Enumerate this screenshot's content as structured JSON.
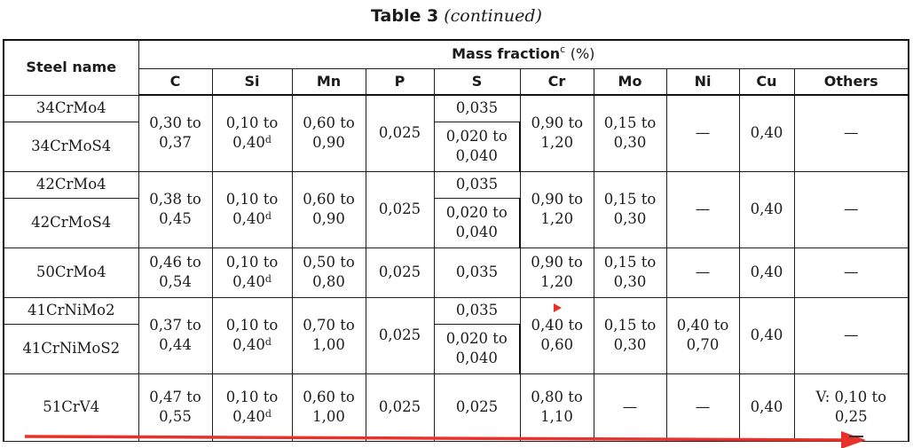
{
  "caption": {
    "main": "Table 3",
    "sub": "(continued)"
  },
  "header": {
    "steel_name": "Steel name",
    "mass_fraction": "Mass fraction",
    "mass_fraction_sup": "c",
    "mass_fraction_unit": "(%)",
    "elements": [
      "C",
      "Si",
      "Mn",
      "P",
      "S",
      "Cr",
      "Mo",
      "Ni",
      "Cu",
      "Others"
    ]
  },
  "groups": [
    {
      "names": [
        "34CrMo4",
        "34CrMoS4"
      ],
      "C": "0,30 to 0,37",
      "Si": "0,10 to 0,40",
      "Si_sup": "d",
      "Mn": "0,60 to 0,90",
      "P": "0,025",
      "S": [
        "0,035",
        "0,020 to 0,040"
      ],
      "Cr": "0,90 to 1,20",
      "Mo": "0,15 to 0,30",
      "Ni": "—",
      "Cu": "0,40",
      "Others": "—"
    },
    {
      "names": [
        "42CrMo4",
        "42CrMoS4"
      ],
      "C": "0,38 to 0,45",
      "Si": "0,10 to 0,40",
      "Si_sup": "d",
      "Mn": "0,60 to 0,90",
      "P": "0,025",
      "S": [
        "0,035",
        "0,020 to 0,040"
      ],
      "Cr": "0,90 to 1,20",
      "Mo": "0,15 to 0,30",
      "Ni": "—",
      "Cu": "0,40",
      "Others": "—"
    },
    {
      "names": [
        "50CrMo4"
      ],
      "C": "0,46 to 0,54",
      "Si": "0,10 to 0,40",
      "Si_sup": "d",
      "Mn": "0,50 to 0,80",
      "P": "0,025",
      "S": [
        "0,035"
      ],
      "Cr": "0,90 to 1,20",
      "Mo": "0,15 to 0,30",
      "Ni": "—",
      "Cu": "0,40",
      "Others": "—"
    },
    {
      "names": [
        "41CrNiMo2",
        "41CrNiMoS2"
      ],
      "C": "0,37 to 0,44",
      "Si": "0,10 to 0,40",
      "Si_sup": "d",
      "Mn": "0,70 to 1,00",
      "P": "0,025",
      "S": [
        "0,035",
        "0,020 to 0,040"
      ],
      "Cr": "0,40 to 0,60",
      "Mo": "0,15 to 0,30",
      "Ni": "0,40 to 0,70",
      "Cu": "0,40",
      "Others": "—"
    },
    {
      "names": [
        "51CrV4"
      ],
      "C": "0,47 to 0,55",
      "Si": "0,10 to 0,40",
      "Si_sup": "d",
      "Mn": "0,60 to 1,00",
      "P": "0,025",
      "S": [
        "0,025"
      ],
      "Cr": "0,80 to 1,10",
      "Mo": "—",
      "Ni": "—",
      "Cu": "0,40",
      "Others": "V: 0,10 to 0,25"
    }
  ],
  "annotation": {
    "arrow_color": "#e8312a",
    "pointer_color": "#e8312a"
  }
}
